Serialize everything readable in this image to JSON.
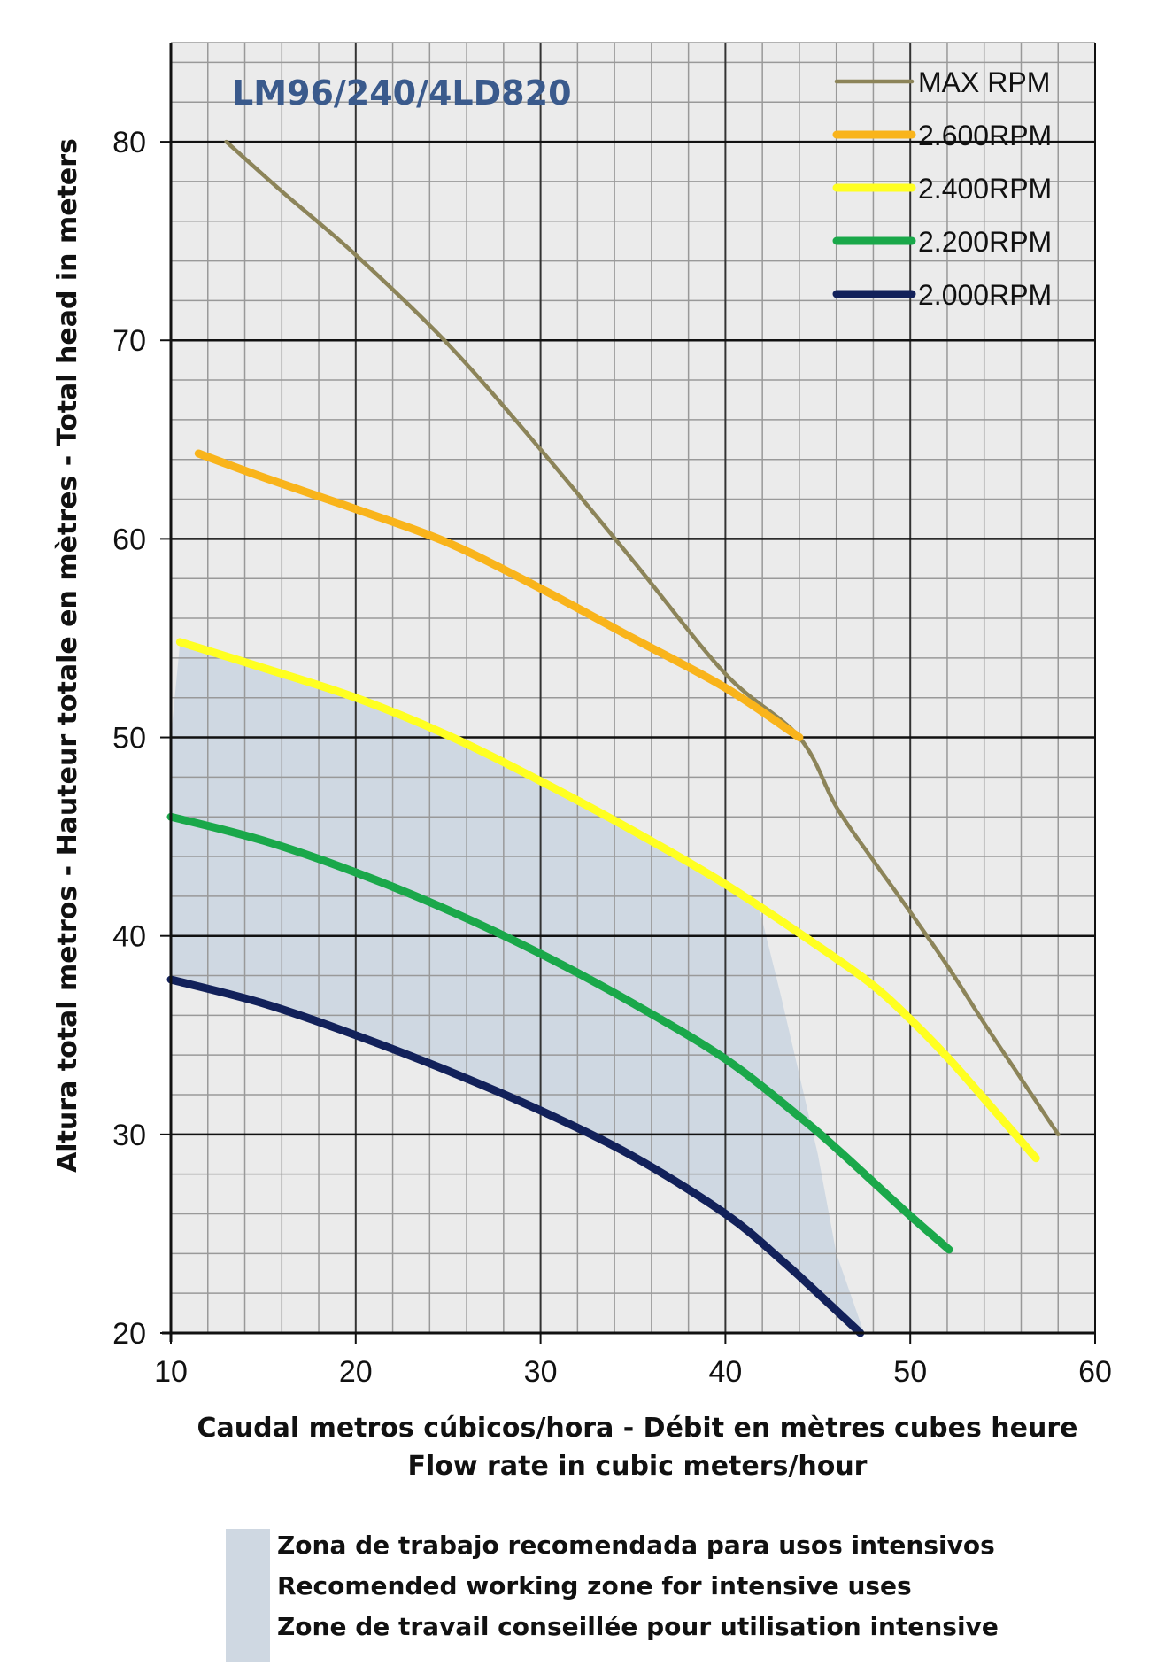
{
  "chart_data": {
    "type": "line",
    "title": "LM96/240/4LD820",
    "xlabel_line1": "Caudal metros cúbicos/hora - Débit en mètres cubes heure",
    "xlabel_line2": "Flow rate in cubic meters/hour",
    "ylabel": "Altura total metros - Hauteur totale en mètres - Total head in meters",
    "xlim": [
      10,
      60
    ],
    "ylim": [
      20,
      85
    ],
    "xticks": [
      10,
      20,
      30,
      40,
      50,
      60
    ],
    "yticks": [
      20,
      30,
      40,
      50,
      60,
      70,
      80
    ],
    "minor_x_step": 2,
    "minor_y_step": 2,
    "grid": true,
    "legend_position": "top-right",
    "colors": {
      "title": "#3a5a8c",
      "zone": "#cfd8e2",
      "grid_minor": "#999999",
      "grid_major": "#333333",
      "background": "#ebebeb"
    },
    "series": [
      {
        "name": "MAX RPM",
        "color": "#8c8459",
        "x": [
          13,
          16,
          20,
          25,
          30,
          35,
          40,
          44,
          46,
          48,
          50,
          52,
          54,
          56,
          58
        ],
        "y": [
          80,
          77.5,
          74.3,
          69.8,
          64.5,
          58.9,
          53.2,
          50,
          46.5,
          43.8,
          41.2,
          38.5,
          35.6,
          32.8,
          30
        ]
      },
      {
        "name": "2.600RPM",
        "color": "#f9b41b",
        "x": [
          11.5,
          15,
          20,
          25,
          30,
          35,
          40,
          44
        ],
        "y": [
          64.3,
          63.1,
          61.5,
          59.8,
          57.5,
          55,
          52.5,
          50
        ]
      },
      {
        "name": "2.400RPM",
        "color": "#ffff21",
        "x": [
          10.5,
          15,
          20,
          25,
          30,
          35,
          40,
          45,
          48,
          50,
          52,
          54,
          56.8
        ],
        "y": [
          54.8,
          53.5,
          52,
          50.1,
          47.8,
          45.3,
          42.6,
          39.5,
          37.5,
          35.8,
          33.9,
          31.8,
          28.8
        ]
      },
      {
        "name": "2.200RPM",
        "color": "#1aa84a",
        "x": [
          10,
          15,
          20,
          25,
          30,
          35,
          40,
          44,
          46,
          48,
          50,
          52.1
        ],
        "y": [
          46,
          44.8,
          43.2,
          41.3,
          39.1,
          36.6,
          33.8,
          30.9,
          29.3,
          27.6,
          25.9,
          24.2
        ]
      },
      {
        "name": "2.000RPM",
        "color": "#12215a",
        "x": [
          10,
          15,
          20,
          25,
          30,
          35,
          40,
          43,
          45,
          47.3
        ],
        "y": [
          37.8,
          36.6,
          35,
          33.2,
          31.2,
          28.9,
          26,
          23.7,
          22,
          20
        ]
      }
    ],
    "zone": {
      "x": [
        10,
        10.5,
        15,
        20,
        25,
        30,
        35,
        40,
        41.8,
        43,
        44,
        45,
        46,
        47.5,
        47.3,
        45,
        43,
        40,
        35,
        30,
        25,
        20,
        15,
        10
      ],
      "y": [
        50,
        54.8,
        53.5,
        52,
        50.1,
        47.8,
        45.3,
        42.6,
        41.5,
        37,
        33,
        29,
        24,
        20,
        20,
        22,
        23.7,
        26,
        28.9,
        31.2,
        33.2,
        35,
        36.6,
        37.8
      ]
    }
  },
  "zone_legend": {
    "line1": "Zona de trabajo recomendada para usos intensivos",
    "line2": "Recomended working zone for intensive uses",
    "line3": "Zone de travail conseillée pour utilisation intensive"
  }
}
